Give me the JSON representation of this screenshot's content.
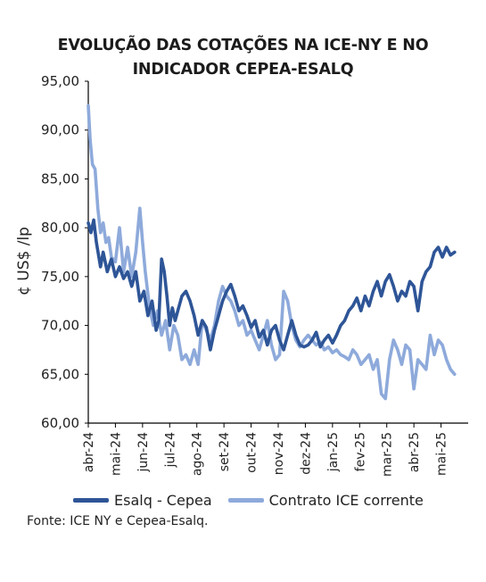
{
  "chart_data": {
    "type": "line",
    "title": [
      "EVOLUÇÃO DAS COTAÇÕES NA ICE-NY E NO",
      "INDICADOR CEPEA-ESALQ"
    ],
    "ylabel": "¢ US$ /lp",
    "ylim": [
      60,
      95
    ],
    "yticks": [
      "60,00",
      "65,00",
      "70,00",
      "75,00",
      "80,00",
      "85,00",
      "90,00",
      "95,00"
    ],
    "xlabels": [
      "abr-24",
      "mai-24",
      "jun-24",
      "jul-24",
      "ago-24",
      "set-24",
      "out-24",
      "nov-24",
      "dez-24",
      "jan-25",
      "fev-25",
      "mar-25",
      "abr-25",
      "mai-25"
    ],
    "legend_position": "bottom",
    "series": [
      {
        "name": "Esalq - Cepea",
        "color": "#2e5597",
        "x": [
          0,
          0.1,
          0.2,
          0.3,
          0.45,
          0.55,
          0.7,
          0.85,
          1.0,
          1.15,
          1.3,
          1.45,
          1.6,
          1.75,
          1.9,
          2.05,
          2.2,
          2.35,
          2.5,
          2.6,
          2.7,
          2.8,
          2.9,
          3.0,
          3.1,
          3.2,
          3.3,
          3.45,
          3.6,
          3.75,
          3.9,
          4.05,
          4.2,
          4.35,
          4.5,
          4.65,
          4.8,
          4.95,
          5.1,
          5.25,
          5.4,
          5.55,
          5.7,
          5.85,
          6.0,
          6.15,
          6.3,
          6.45,
          6.6,
          6.75,
          6.9,
          7.05,
          7.2,
          7.35,
          7.5,
          7.65,
          7.8,
          7.95,
          8.1,
          8.25,
          8.4,
          8.55,
          8.7,
          8.85,
          9.0,
          9.15,
          9.3,
          9.45,
          9.6,
          9.75,
          9.9,
          10.05,
          10.2,
          10.35,
          10.5,
          10.65,
          10.8,
          10.95,
          11.1,
          11.25,
          11.4,
          11.55,
          11.7,
          11.85,
          12.0,
          12.15,
          12.3,
          12.45,
          12.6,
          12.75,
          12.9,
          13.05,
          13.2,
          13.35,
          13.5
        ],
        "values": [
          80.5,
          79.5,
          80.8,
          78.5,
          76.0,
          77.5,
          75.5,
          76.8,
          75.0,
          76.0,
          74.8,
          75.5,
          74.0,
          75.5,
          72.5,
          73.5,
          71.0,
          72.5,
          69.5,
          70.5,
          76.8,
          75.5,
          73.0,
          70.0,
          71.8,
          70.5,
          71.5,
          73.0,
          73.5,
          72.5,
          71.0,
          69.0,
          70.5,
          69.8,
          67.5,
          69.5,
          71.0,
          72.5,
          73.5,
          74.2,
          73.0,
          71.5,
          72.0,
          71.0,
          69.8,
          70.5,
          68.8,
          69.5,
          68.0,
          69.5,
          70.0,
          68.5,
          67.5,
          69.0,
          70.5,
          69.0,
          68.0,
          67.8,
          68.0,
          68.5,
          69.3,
          67.8,
          68.5,
          69.0,
          68.2,
          69.0,
          70.0,
          70.5,
          71.5,
          72.0,
          72.8,
          71.5,
          73.0,
          72.0,
          73.5,
          74.5,
          73.0,
          74.5,
          75.2,
          74.0,
          72.5,
          73.5,
          73.0,
          74.5,
          74.0,
          71.5,
          74.5,
          75.5,
          76.0,
          77.5,
          78.0,
          77.0,
          78.0,
          77.2,
          77.5
        ]
      },
      {
        "name": "Contrato ICE corrente",
        "color": "#8eaadb",
        "x": [
          0,
          0.07,
          0.15,
          0.25,
          0.35,
          0.45,
          0.55,
          0.65,
          0.75,
          0.85,
          1.0,
          1.15,
          1.3,
          1.45,
          1.6,
          1.75,
          1.9,
          2.0,
          2.1,
          2.25,
          2.4,
          2.55,
          2.7,
          2.85,
          3.0,
          3.15,
          3.3,
          3.45,
          3.6,
          3.75,
          3.9,
          4.05,
          4.2,
          4.35,
          4.5,
          4.65,
          4.8,
          4.95,
          5.1,
          5.25,
          5.4,
          5.55,
          5.7,
          5.85,
          6.0,
          6.15,
          6.3,
          6.45,
          6.6,
          6.75,
          6.9,
          7.05,
          7.2,
          7.35,
          7.5,
          7.65,
          7.8,
          7.95,
          8.1,
          8.25,
          8.4,
          8.55,
          8.7,
          8.85,
          9.0,
          9.15,
          9.3,
          9.45,
          9.6,
          9.75,
          9.9,
          10.05,
          10.2,
          10.35,
          10.5,
          10.65,
          10.8,
          10.95,
          11.1,
          11.25,
          11.4,
          11.55,
          11.7,
          11.85,
          12.0,
          12.15,
          12.3,
          12.45,
          12.6,
          12.75,
          12.9,
          13.05,
          13.2,
          13.35,
          13.5
        ],
        "values": [
          92.5,
          89.0,
          86.5,
          86.0,
          82.0,
          79.5,
          80.5,
          78.5,
          79.0,
          77.0,
          76.5,
          80.0,
          75.5,
          78.0,
          75.0,
          77.5,
          82.0,
          78.5,
          75.5,
          72.0,
          70.0,
          71.5,
          69.0,
          70.5,
          67.5,
          70.0,
          69.0,
          66.5,
          67.0,
          66.0,
          67.5,
          66.0,
          70.5,
          69.5,
          68.5,
          70.0,
          72.5,
          74.0,
          73.0,
          72.5,
          71.5,
          70.0,
          70.5,
          69.0,
          69.5,
          68.5,
          67.5,
          69.0,
          70.5,
          68.0,
          66.5,
          67.0,
          73.5,
          72.5,
          70.0,
          68.5,
          67.8,
          68.5,
          69.0,
          68.5,
          68.0,
          68.3,
          67.5,
          67.8,
          67.2,
          67.5,
          67.0,
          66.8,
          66.5,
          67.5,
          67.0,
          66.0,
          66.5,
          67.0,
          65.5,
          66.5,
          63.0,
          62.5,
          66.5,
          68.5,
          67.5,
          66.0,
          68.0,
          67.5,
          63.5,
          66.5,
          66.0,
          65.5,
          69.0,
          67.0,
          68.5,
          68.0,
          66.5,
          65.5,
          65.0
        ]
      }
    ]
  },
  "source": "Fonte: ICE NY e Cepea-Esalq."
}
